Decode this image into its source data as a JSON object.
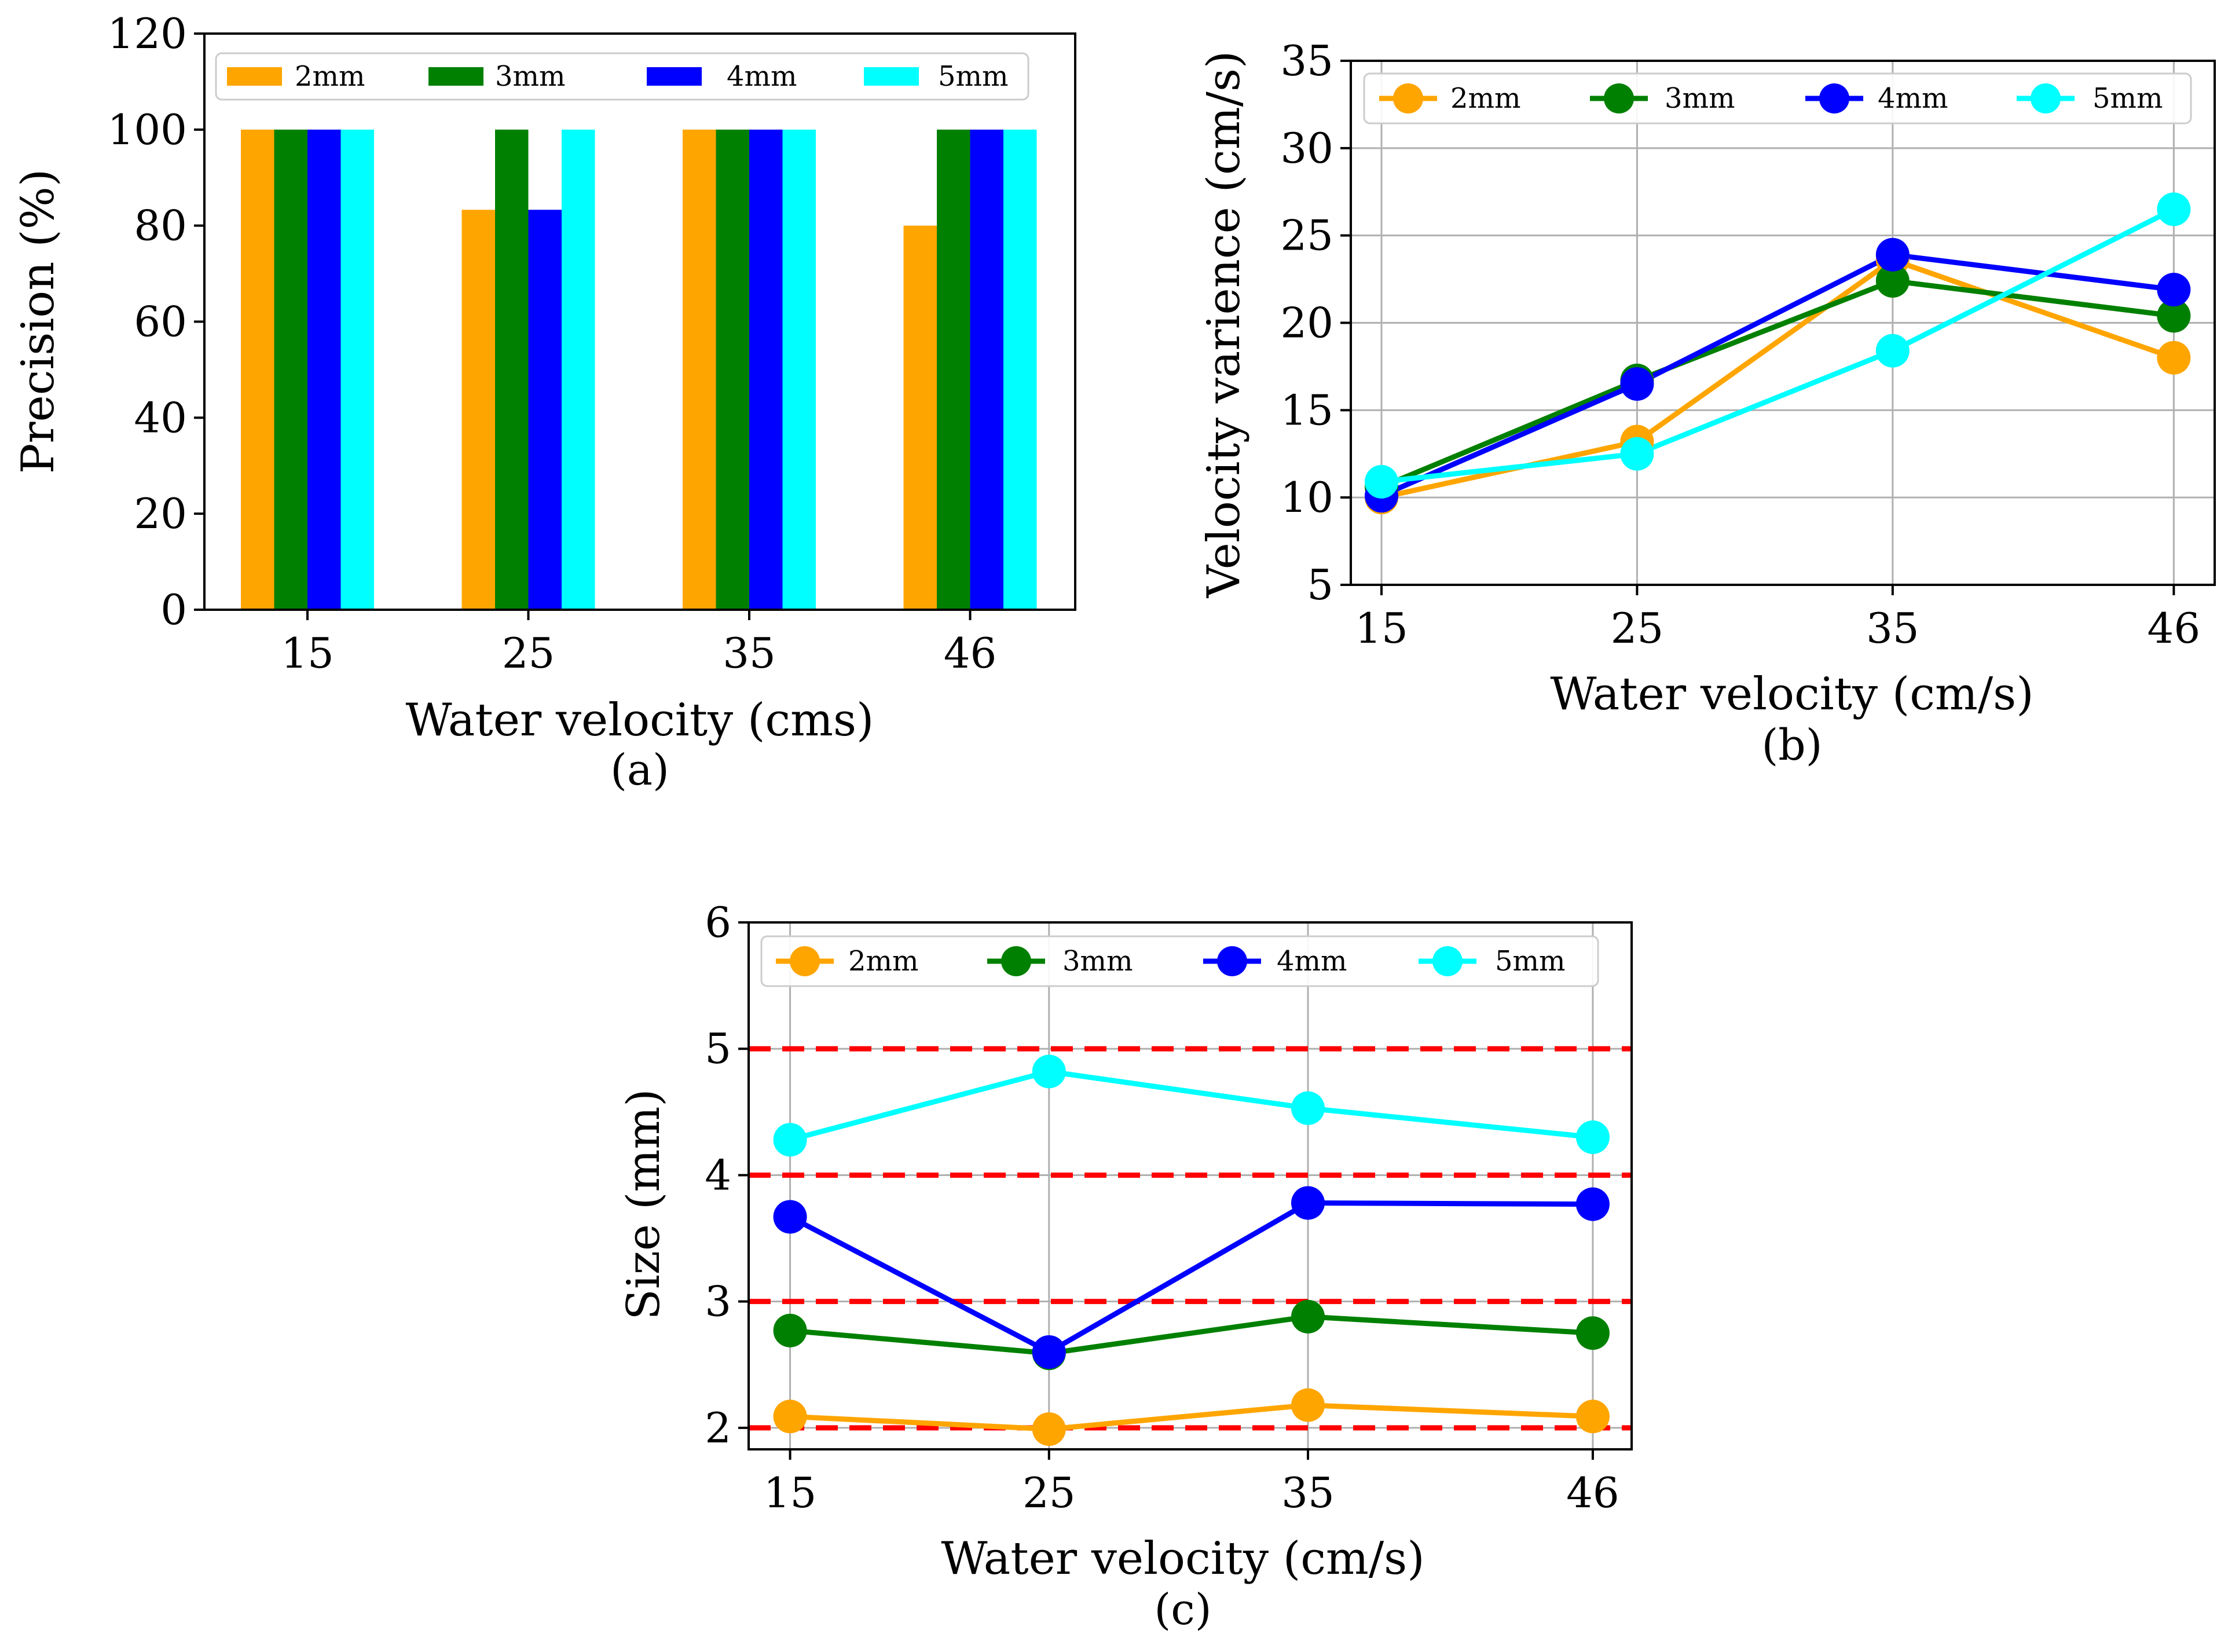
{
  "chart_data": [
    {
      "type": "bar",
      "caption": "(a)",
      "categories": [
        "15",
        "25",
        "35",
        "46"
      ],
      "series": [
        {
          "name": "2mm",
          "color": "#FFA500",
          "values": [
            100,
            83.3,
            100,
            80
          ]
        },
        {
          "name": "3mm",
          "color": "#008000",
          "values": [
            100,
            100,
            100,
            100
          ]
        },
        {
          "name": "4mm",
          "color": "#0000FF",
          "values": [
            100,
            83.3,
            100,
            100
          ]
        },
        {
          "name": "5mm",
          "color": "#00FFFF",
          "values": [
            100,
            100,
            100,
            100
          ]
        }
      ],
      "xlabel": "Water velocity (cms)",
      "ylabel": "Precision (%)",
      "ylim": [
        0,
        120
      ],
      "yticks": [
        "0",
        "20",
        "40",
        "60",
        "80",
        "100",
        "120"
      ],
      "grid": false,
      "legend_position": "top"
    },
    {
      "type": "line",
      "caption": "(b)",
      "x": [
        15,
        25,
        35,
        46
      ],
      "xticks": [
        "15",
        "25",
        "35",
        "46"
      ],
      "series": [
        {
          "name": "2mm",
          "color": "#FFA500",
          "values": [
            10.0,
            13.2,
            23.6,
            18.0
          ]
        },
        {
          "name": "3mm",
          "color": "#008000",
          "values": [
            10.6,
            16.7,
            22.4,
            20.4
          ]
        },
        {
          "name": "4mm",
          "color": "#0000FF",
          "values": [
            10.1,
            16.5,
            23.9,
            21.9
          ]
        },
        {
          "name": "5mm",
          "color": "#00FFFF",
          "values": [
            10.9,
            12.5,
            18.4,
            26.5
          ]
        }
      ],
      "xlabel": "Water velocity (cm/s)",
      "ylabel": "Velocity varience (cm/s)",
      "xlim": [
        13.8,
        47.6
      ],
      "ylim": [
        5,
        35
      ],
      "yticks": [
        "5",
        "10",
        "15",
        "20",
        "25",
        "30",
        "35"
      ],
      "grid": true,
      "legend_position": "top"
    },
    {
      "type": "line",
      "caption": "(c)",
      "x": [
        15,
        25,
        35,
        46
      ],
      "xticks": [
        "15",
        "25",
        "35",
        "46"
      ],
      "series": [
        {
          "name": "2mm",
          "color": "#FFA500",
          "values": [
            2.09,
            1.99,
            2.18,
            2.09
          ]
        },
        {
          "name": "3mm",
          "color": "#008000",
          "values": [
            2.77,
            2.59,
            2.88,
            2.75
          ]
        },
        {
          "name": "4mm",
          "color": "#0000FF",
          "values": [
            3.67,
            2.6,
            3.78,
            3.77
          ]
        },
        {
          "name": "5mm",
          "color": "#00FFFF",
          "values": [
            4.28,
            4.82,
            4.53,
            4.3
          ]
        }
      ],
      "reference_lines": [
        2,
        3,
        4,
        5
      ],
      "reference_line_color": "#FF0000",
      "xlabel": "Water velocity (cm/s)",
      "ylabel": "Size (mm)",
      "xlim": [
        13.4,
        47.5
      ],
      "ylim": [
        1.83,
        6
      ],
      "yticks": [
        "2",
        "3",
        "4",
        "5",
        "6"
      ],
      "grid": true,
      "legend_position": "top"
    }
  ]
}
